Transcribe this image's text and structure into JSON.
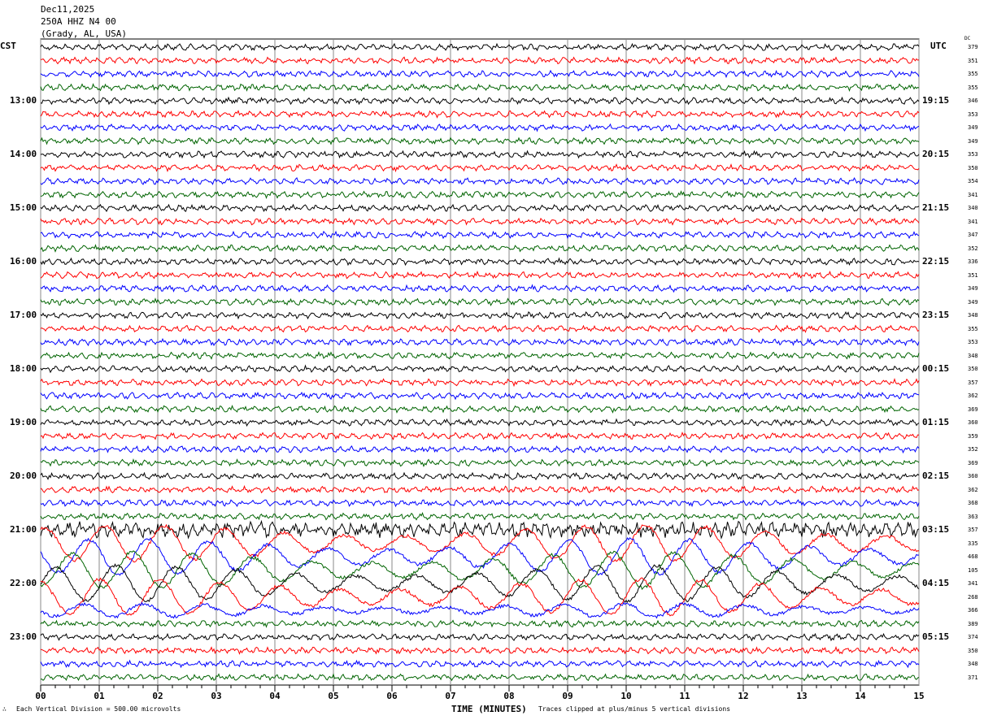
{
  "header": {
    "date": "Dec11,2025",
    "station": "250A HHZ N4 00",
    "location": "(Grady, AL, USA)"
  },
  "left_axis_title": "CST",
  "right_axis_title": "UTC",
  "dc_title": "DC",
  "left_labels": [
    "13:00",
    "14:00",
    "15:00",
    "16:00",
    "17:00",
    "18:00",
    "19:00",
    "20:00",
    "21:00",
    "22:00",
    "23:00"
  ],
  "right_labels": [
    "19:15",
    "20:15",
    "21:15",
    "22:15",
    "23:15",
    "00:15",
    "01:15",
    "02:15",
    "03:15",
    "04:15",
    "05:15"
  ],
  "dc_values": [
    "379",
    "351",
    "355",
    "355",
    "346",
    "353",
    "349",
    "349",
    "353",
    "350",
    "354",
    "341",
    "340",
    "341",
    "347",
    "352",
    "336",
    "351",
    "349",
    "349",
    "348",
    "355",
    "353",
    "348",
    "350",
    "357",
    "362",
    "369",
    "360",
    "359",
    "352",
    "369",
    "360",
    "362",
    "368",
    "363",
    "357",
    "335",
    "468",
    "105",
    "341",
    "268",
    "366",
    "389",
    "374",
    "350",
    "348",
    "371"
  ],
  "footer": {
    "division": "Each Vertical Division =  500.00 microvolts",
    "xlabel": "TIME (MINUTES)",
    "clip_note": "Traces clipped at plus/minus 5 vertical divisions",
    "corner": "∴"
  },
  "chart_data": {
    "type": "line",
    "title": "Helicorder 250A HHZ N4 00",
    "xlabel": "TIME (MINUTES)",
    "xlim": [
      0,
      15
    ],
    "x_ticks": [
      "00",
      "01",
      "02",
      "03",
      "04",
      "05",
      "06",
      "07",
      "08",
      "09",
      "10",
      "11",
      "12",
      "13",
      "14",
      "15"
    ],
    "rows": 48,
    "minutes_per_row": 15,
    "trace_colors": [
      "#000000",
      "#ff0000",
      "#0000ff",
      "#006400"
    ],
    "vertical_division_microvolts": 500
  }
}
